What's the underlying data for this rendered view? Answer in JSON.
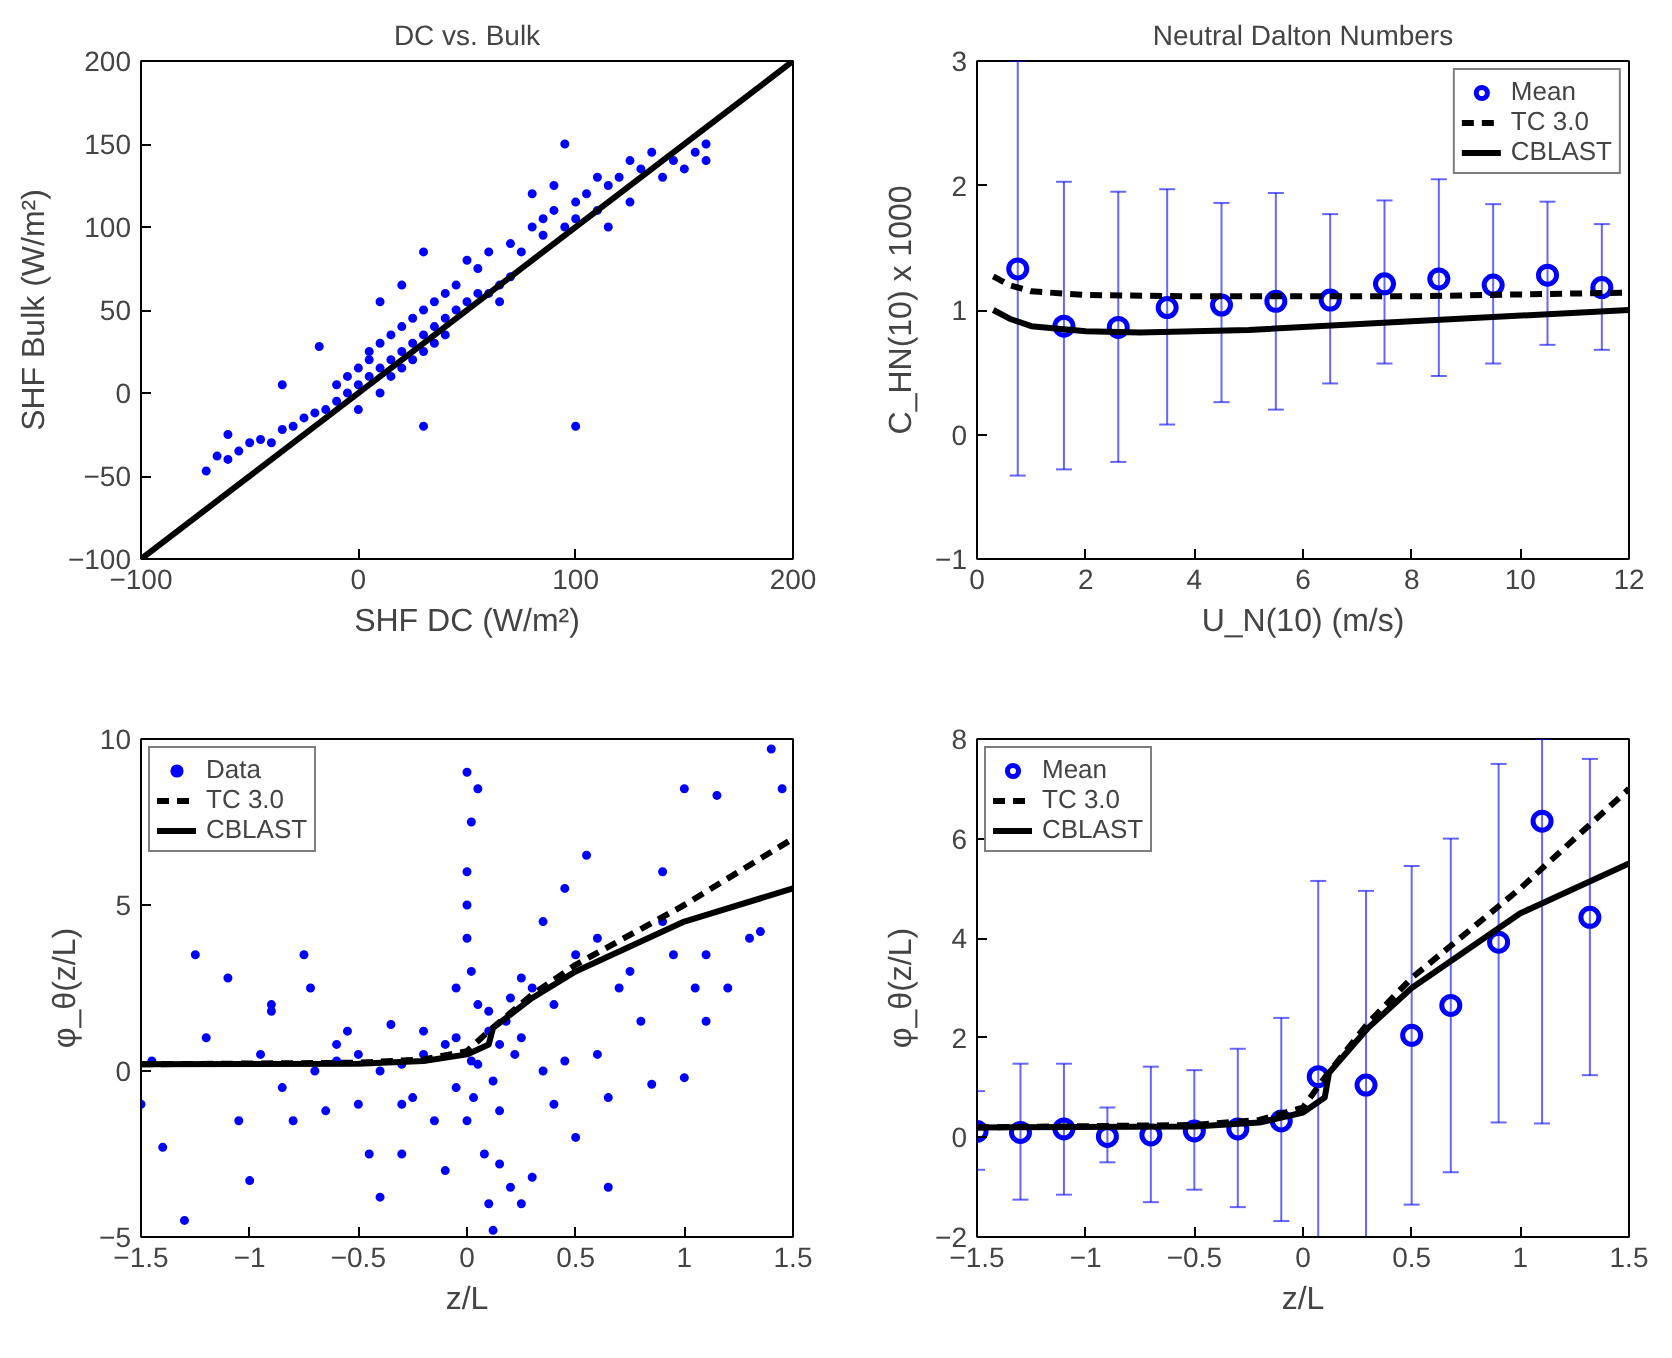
{
  "chart_data": [
    {
      "type": "scatter",
      "title": "DC vs. Bulk",
      "xlabel": "SHF DC (W/m²)",
      "ylabel": "SHF Bulk (W/m²)",
      "xlim": [
        -100,
        200
      ],
      "ylim": [
        -100,
        200
      ],
      "xticks": [
        -100,
        0,
        100,
        200
      ],
      "yticks": [
        -100,
        -50,
        0,
        50,
        100,
        150,
        200
      ],
      "series": [
        {
          "color": "#0000ff",
          "marker": "circle",
          "x": [
            -70,
            -65,
            -60,
            -55,
            -50,
            -45,
            -40,
            -35,
            -30,
            -25,
            -20,
            -18,
            -15,
            -10,
            -10,
            -5,
            -5,
            0,
            0,
            0,
            5,
            5,
            5,
            10,
            10,
            10,
            15,
            15,
            15,
            20,
            20,
            20,
            25,
            25,
            25,
            30,
            30,
            30,
            30,
            35,
            35,
            35,
            40,
            40,
            40,
            45,
            45,
            50,
            50,
            55,
            55,
            60,
            60,
            65,
            65,
            70,
            70,
            75,
            80,
            80,
            85,
            85,
            90,
            90,
            95,
            95,
            100,
            100,
            100,
            105,
            110,
            110,
            115,
            115,
            120,
            125,
            125,
            130,
            135,
            140,
            145,
            150,
            155,
            160,
            160,
            -35,
            -60,
            20,
            30,
            10
          ],
          "values": [
            -47,
            -38,
            -40,
            -35,
            -30,
            -28,
            -30,
            -22,
            -20,
            -15,
            -12,
            28,
            -10,
            -5,
            5,
            0,
            10,
            5,
            15,
            -10,
            10,
            20,
            25,
            15,
            30,
            0,
            20,
            35,
            10,
            25,
            40,
            15,
            30,
            45,
            20,
            35,
            50,
            25,
            -20,
            40,
            55,
            30,
            45,
            60,
            35,
            50,
            65,
            55,
            80,
            60,
            75,
            60,
            85,
            65,
            55,
            70,
            90,
            85,
            100,
            120,
            105,
            95,
            110,
            125,
            100,
            150,
            115,
            105,
            -20,
            120,
            110,
            130,
            125,
            100,
            130,
            140,
            115,
            135,
            145,
            130,
            140,
            135,
            145,
            140,
            150,
            5,
            -25,
            65,
            85,
            55
          ]
        },
        {
          "type": "line",
          "color": "#000000",
          "line_style": "solid",
          "x": [
            -100,
            200
          ],
          "values": [
            -100,
            200
          ]
        }
      ]
    },
    {
      "type": "scatter",
      "title": "Neutral Dalton Numbers",
      "xlabel": "U_N(10) (m/s)",
      "ylabel": "C_HN(10) x 1000",
      "xlim": [
        0,
        12
      ],
      "ylim": [
        -1,
        3
      ],
      "xticks": [
        0,
        2,
        4,
        6,
        8,
        10,
        12
      ],
      "yticks": [
        -1,
        0,
        1,
        2,
        3
      ],
      "legend": "top right",
      "series": [
        {
          "name": "Mean",
          "color": "#0000ff",
          "marker": "circle",
          "x": [
            0.75,
            1.6,
            2.6,
            3.5,
            4.5,
            5.5,
            6.5,
            7.5,
            8.5,
            9.5,
            10.5,
            11.5
          ],
          "values": [
            1.33,
            0.87,
            0.86,
            1.02,
            1.04,
            1.07,
            1.08,
            1.21,
            1.25,
            1.2,
            1.28,
            1.18
          ],
          "errors": [
            [
              -0.33,
              3.0
            ],
            [
              -0.28,
              2.03
            ],
            [
              -0.22,
              1.95
            ],
            [
              0.08,
              1.97
            ],
            [
              0.26,
              1.86
            ],
            [
              0.2,
              1.94
            ],
            [
              0.41,
              1.77
            ],
            [
              0.57,
              1.88
            ],
            [
              0.47,
              2.05
            ],
            [
              0.57,
              1.85
            ],
            [
              0.72,
              1.87
            ],
            [
              0.68,
              1.69
            ]
          ]
        },
        {
          "name": "TC 3.0",
          "type": "line",
          "color": "#000000",
          "line_style": "dashed",
          "x": [
            0.3,
            0.6,
            1,
            2,
            4,
            8,
            12
          ],
          "values": [
            1.27,
            1.2,
            1.15,
            1.12,
            1.11,
            1.11,
            1.14
          ]
        },
        {
          "name": "CBLAST",
          "type": "line",
          "color": "#000000",
          "line_style": "solid",
          "x": [
            0.3,
            0.6,
            1,
            2,
            3,
            5,
            8,
            12
          ],
          "values": [
            1.0,
            0.93,
            0.87,
            0.83,
            0.82,
            0.84,
            0.91,
            1.0
          ]
        }
      ]
    },
    {
      "type": "scatter",
      "xlabel": "z/L",
      "ylabel": "φ_θ(z/L)",
      "xlim": [
        -1.5,
        1.5
      ],
      "ylim": [
        -5,
        10
      ],
      "xticks": [
        -1.5,
        -1,
        -0.5,
        0,
        0.5,
        1,
        1.5
      ],
      "yticks": [
        -5,
        0,
        5,
        10
      ],
      "legend": "top left",
      "series": [
        {
          "name": "Data",
          "color": "#0000ff",
          "marker": "circle",
          "x": [
            -1.5,
            -1.45,
            -1.4,
            -1.3,
            -1.25,
            -1.2,
            -1.1,
            -1.05,
            -1.0,
            -0.95,
            -0.9,
            -0.85,
            -0.8,
            -0.75,
            -0.72,
            -0.7,
            -0.65,
            -0.6,
            -0.55,
            -0.5,
            -0.5,
            -0.45,
            -0.4,
            -0.4,
            -0.35,
            -0.3,
            -0.3,
            -0.25,
            -0.2,
            -0.2,
            -0.15,
            -0.1,
            -0.1,
            -0.05,
            -0.05,
            0.0,
            0.0,
            0.0,
            0.0,
            0.02,
            0.02,
            0.03,
            0.05,
            0.05,
            0.08,
            0.1,
            0.1,
            0.12,
            0.15,
            0.15,
            0.18,
            0.2,
            0.2,
            0.22,
            0.25,
            0.25,
            0.3,
            0.3,
            0.35,
            0.35,
            0.4,
            0.4,
            0.45,
            0.5,
            0.5,
            0.55,
            0.6,
            0.6,
            0.65,
            0.7,
            0.75,
            0.8,
            0.85,
            0.9,
            0.95,
            1.0,
            1.0,
            1.05,
            1.1,
            1.15,
            1.2,
            1.3,
            1.35,
            1.4,
            1.45,
            -0.05,
            0.0,
            0.02,
            0.1,
            0.15,
            -0.6,
            -0.3,
            0.05,
            0.12,
            0.25,
            0.45,
            0.65,
            0.9,
            1.1,
            -0.9
          ],
          "values": [
            -1.0,
            0.3,
            -2.3,
            -4.5,
            3.5,
            1.0,
            2.8,
            -1.5,
            -3.3,
            0.5,
            2.0,
            -0.5,
            -1.5,
            3.5,
            2.5,
            0.0,
            -1.2,
            0.3,
            1.2,
            -1.0,
            0.5,
            -2.5,
            0.0,
            -3.8,
            1.4,
            0.2,
            -2.5,
            -0.8,
            0.5,
            1.2,
            -1.5,
            0.8,
            -3.0,
            2.5,
            -0.5,
            9.0,
            6.0,
            4.0,
            -1.5,
            7.5,
            3.0,
            -0.8,
            8.5,
            2.0,
            -2.5,
            1.2,
            -4.0,
            -4.8,
            0.8,
            -2.8,
            1.5,
            -3.5,
            2.2,
            0.5,
            -4.0,
            1.0,
            2.5,
            -3.2,
            0.0,
            4.5,
            2.0,
            -1.0,
            5.5,
            3.5,
            -2.0,
            6.5,
            0.5,
            4.0,
            -3.5,
            2.5,
            3.0,
            1.5,
            -0.4,
            6.0,
            3.5,
            -0.2,
            8.5,
            2.5,
            3.5,
            8.3,
            2.5,
            4.0,
            4.2,
            9.7,
            8.5,
            1.0,
            5.0,
            0.3,
            1.8,
            -1.2,
            0.8,
            -1.0,
            0.2,
            -0.3,
            2.8,
            0.3,
            -0.8,
            4.5,
            1.5,
            1.8
          ]
        },
        {
          "name": "TC 3.0",
          "type": "line",
          "color": "#000000",
          "line_style": "dashed",
          "x": [
            -1.5,
            -0.5,
            -0.2,
            0,
            0.1,
            0.3,
            0.5,
            1,
            1.5
          ],
          "values": [
            0.2,
            0.25,
            0.35,
            0.6,
            1.2,
            2.3,
            3.2,
            5.0,
            7.0
          ]
        },
        {
          "name": "CBLAST",
          "type": "line",
          "color": "#000000",
          "line_style": "solid",
          "x": [
            -1.5,
            -0.5,
            -0.2,
            0,
            0.1,
            0.12,
            0.3,
            0.5,
            1,
            1.5
          ],
          "values": [
            0.2,
            0.22,
            0.3,
            0.5,
            0.8,
            1.3,
            2.2,
            3.0,
            4.5,
            5.5
          ]
        }
      ]
    },
    {
      "type": "scatter",
      "xlabel": "z/L",
      "ylabel": "φ_θ(z/L)",
      "xlim": [
        -1.5,
        1.5
      ],
      "ylim": [
        -2,
        8
      ],
      "xticks": [
        -1.5,
        -1,
        -0.5,
        0,
        0.5,
        1,
        1.5
      ],
      "yticks": [
        -2,
        0,
        2,
        4,
        6,
        8
      ],
      "legend": "top left",
      "series": [
        {
          "name": "Mean",
          "color": "#0000ff",
          "marker": "circle",
          "x": [
            -1.5,
            -1.3,
            -1.1,
            -0.9,
            -0.7,
            -0.5,
            -0.3,
            -0.1,
            0.07,
            0.29,
            0.5,
            0.68,
            0.9,
            1.1,
            1.32
          ],
          "values": [
            0.12,
            0.1,
            0.17,
            0.02,
            0.05,
            0.13,
            0.17,
            0.33,
            1.22,
            1.05,
            2.05,
            2.65,
            3.92,
            6.35,
            4.42
          ],
          "errors": [
            [
              -0.65,
              0.93
            ],
            [
              -1.25,
              1.48
            ],
            [
              -1.15,
              1.48
            ],
            [
              -0.5,
              0.6
            ],
            [
              -1.3,
              1.42
            ],
            [
              -1.05,
              1.35
            ],
            [
              -1.4,
              1.78
            ],
            [
              -1.68,
              2.4
            ],
            [
              -2,
              5.15
            ],
            [
              -2,
              4.95
            ],
            [
              -1.35,
              5.45
            ],
            [
              -0.7,
              6.0
            ],
            [
              0.3,
              7.5
            ],
            [
              0.28,
              8
            ],
            [
              1.25,
              7.6
            ]
          ]
        },
        {
          "name": "TC 3.0",
          "type": "line",
          "color": "#000000",
          "line_style": "dashed",
          "x": [
            -1.5,
            -0.5,
            -0.2,
            0,
            0.1,
            0.3,
            0.5,
            1,
            1.5
          ],
          "values": [
            0.2,
            0.25,
            0.35,
            0.6,
            1.2,
            2.3,
            3.2,
            5.0,
            7.0
          ]
        },
        {
          "name": "CBLAST",
          "type": "line",
          "color": "#000000",
          "line_style": "solid",
          "x": [
            -1.5,
            -0.5,
            -0.2,
            0,
            0.1,
            0.12,
            0.3,
            0.5,
            1,
            1.5
          ],
          "values": [
            0.2,
            0.22,
            0.3,
            0.5,
            0.8,
            1.3,
            2.2,
            3.0,
            4.5,
            5.5
          ]
        }
      ]
    }
  ]
}
